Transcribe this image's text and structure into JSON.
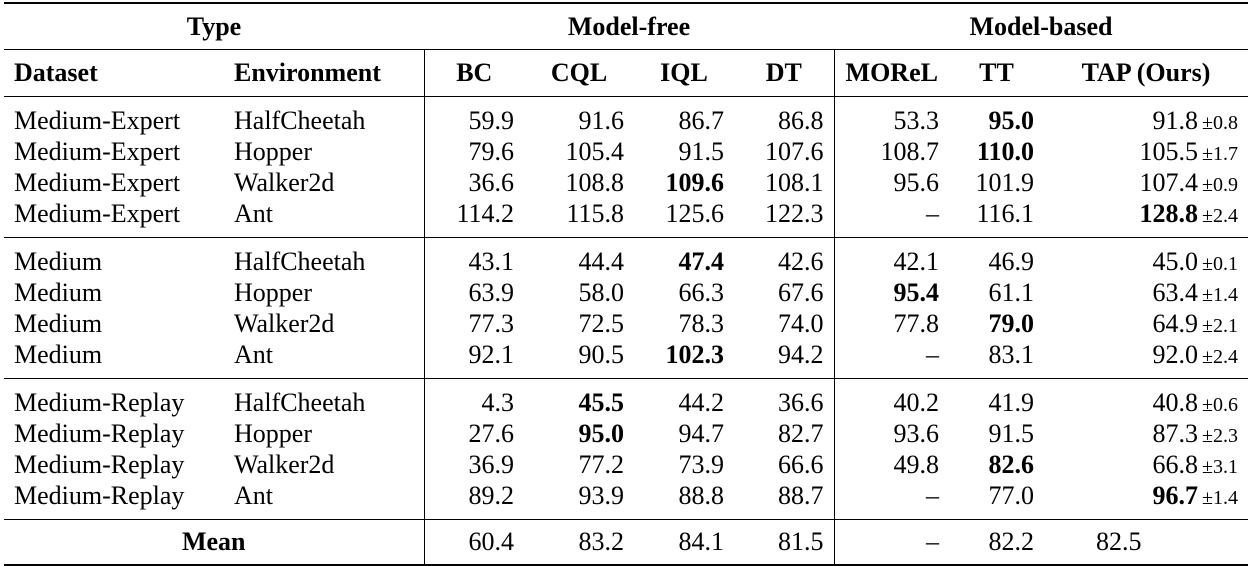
{
  "header_top": {
    "type_label": "Type",
    "model_free_label": "Model-free",
    "model_based_label": "Model-based"
  },
  "columns": {
    "dataset": "Dataset",
    "environment": "Environment",
    "bc": "BC",
    "cql": "CQL",
    "iql": "IQL",
    "dt": "DT",
    "morel": "MOReL",
    "tt": "TT",
    "tap": "TAP (Ours)"
  },
  "rows": [
    {
      "dataset": "Medium-Expert",
      "env": "HalfCheetah",
      "bc": "59.9",
      "cql": "91.6",
      "iql": "86.7",
      "dt": "86.8",
      "morel": "53.3",
      "tt": "95.0",
      "tap": "91.8",
      "tap_pm": "±0.8"
    },
    {
      "dataset": "Medium-Expert",
      "env": "Hopper",
      "bc": "79.6",
      "cql": "105.4",
      "iql": "91.5",
      "dt": "107.6",
      "morel": "108.7",
      "tt": "110.0",
      "tap": "105.5",
      "tap_pm": "±1.7"
    },
    {
      "dataset": "Medium-Expert",
      "env": "Walker2d",
      "bc": "36.6",
      "cql": "108.8",
      "iql": "109.6",
      "dt": "108.1",
      "morel": "95.6",
      "tt": "101.9",
      "tap": "107.4",
      "tap_pm": "±0.9"
    },
    {
      "dataset": "Medium-Expert",
      "env": "Ant",
      "bc": "114.2",
      "cql": "115.8",
      "iql": "125.6",
      "dt": "122.3",
      "morel": "–",
      "tt": "116.1",
      "tap": "128.8",
      "tap_pm": "±2.4"
    },
    {
      "dataset": "Medium",
      "env": "HalfCheetah",
      "bc": "43.1",
      "cql": "44.4",
      "iql": "47.4",
      "dt": "42.6",
      "morel": "42.1",
      "tt": "46.9",
      "tap": "45.0",
      "tap_pm": "±0.1"
    },
    {
      "dataset": "Medium",
      "env": "Hopper",
      "bc": "63.9",
      "cql": "58.0",
      "iql": "66.3",
      "dt": "67.6",
      "morel": "95.4",
      "tt": "61.1",
      "tap": "63.4",
      "tap_pm": "±1.4"
    },
    {
      "dataset": "Medium",
      "env": "Walker2d",
      "bc": "77.3",
      "cql": "72.5",
      "iql": "78.3",
      "dt": "74.0",
      "morel": "77.8",
      "tt": "79.0",
      "tap": "64.9",
      "tap_pm": "±2.1"
    },
    {
      "dataset": "Medium",
      "env": "Ant",
      "bc": "92.1",
      "cql": "90.5",
      "iql": "102.3",
      "dt": "94.2",
      "morel": "–",
      "tt": "83.1",
      "tap": "92.0",
      "tap_pm": "±2.4"
    },
    {
      "dataset": "Medium-Replay",
      "env": "HalfCheetah",
      "bc": "4.3",
      "cql": "45.5",
      "iql": "44.2",
      "dt": "36.6",
      "morel": "40.2",
      "tt": "41.9",
      "tap": "40.8",
      "tap_pm": "±0.6"
    },
    {
      "dataset": "Medium-Replay",
      "env": "Hopper",
      "bc": "27.6",
      "cql": "95.0",
      "iql": "94.7",
      "dt": "82.7",
      "morel": "93.6",
      "tt": "91.5",
      "tap": "87.3",
      "tap_pm": "±2.3"
    },
    {
      "dataset": "Medium-Replay",
      "env": "Walker2d",
      "bc": "36.9",
      "cql": "77.2",
      "iql": "73.9",
      "dt": "66.6",
      "morel": "49.8",
      "tt": "82.6",
      "tap": "66.8",
      "tap_pm": "±3.1"
    },
    {
      "dataset": "Medium-Replay",
      "env": "Ant",
      "bc": "89.2",
      "cql": "93.9",
      "iql": "88.8",
      "dt": "88.7",
      "morel": "–",
      "tt": "77.0",
      "tap": "96.7",
      "tap_pm": "±1.4"
    }
  ],
  "mean": {
    "label": "Mean",
    "bc": "60.4",
    "cql": "83.2",
    "iql": "84.1",
    "dt": "81.5",
    "morel": "–",
    "tt": "82.2",
    "tap": "82.5"
  }
}
